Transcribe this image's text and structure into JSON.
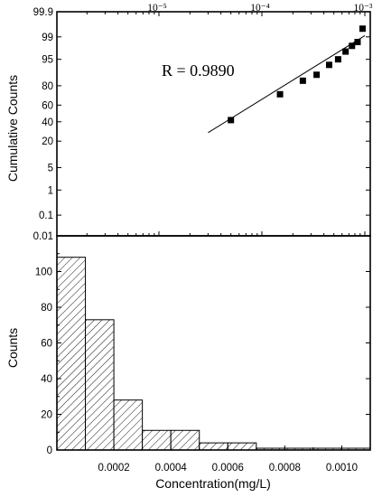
{
  "chart_data": [
    {
      "type": "scatter",
      "name": "probability-plot",
      "x_scale": "log",
      "y_scale": "probability",
      "xlim": [
        1e-06,
        0.001
      ],
      "x_ticks": [
        1e-05,
        0.0001,
        0.001
      ],
      "x_tick_labels": [
        "10⁻⁵",
        "10⁻⁴",
        "10⁻³"
      ],
      "y_ticks": [
        0.01,
        0.1,
        1,
        5,
        20,
        40,
        60,
        80,
        95,
        99,
        99.9
      ],
      "y_tick_labels": [
        "0.01",
        "0.1",
        "1",
        "5",
        "20",
        "40",
        "60",
        "80",
        "95",
        "99",
        "99.9"
      ],
      "ylabel": "Cumulative Counts",
      "annotation": "R = 0.9890",
      "points": [
        {
          "x": 5e-05,
          "y": 42
        },
        {
          "x": 0.00015,
          "y": 72
        },
        {
          "x": 0.00025,
          "y": 84
        },
        {
          "x": 0.00034,
          "y": 88
        },
        {
          "x": 0.00045,
          "y": 93
        },
        {
          "x": 0.00055,
          "y": 95
        },
        {
          "x": 0.00065,
          "y": 97
        },
        {
          "x": 0.00075,
          "y": 98
        },
        {
          "x": 0.00085,
          "y": 98.5
        },
        {
          "x": 0.00095,
          "y": 99.5
        }
      ],
      "fit_line": [
        {
          "x": 3e-05,
          "y": 28
        },
        {
          "x": 0.001,
          "y": 99.1
        }
      ]
    },
    {
      "type": "bar",
      "name": "histogram",
      "xlabel": "Concentration(mg/L)",
      "ylabel": "Counts",
      "xlim": [
        0,
        0.0011
      ],
      "ylim": [
        0,
        120
      ],
      "x_ticks": [
        0.0002,
        0.0004,
        0.0006,
        0.0008,
        0.001
      ],
      "x_tick_labels": [
        "0.0002",
        "0.0004",
        "0.0006",
        "0.0008",
        "0.0010"
      ],
      "y_ticks": [
        0,
        20,
        40,
        60,
        80,
        100
      ],
      "y_tick_labels": [
        "0",
        "20",
        "40",
        "60",
        "80",
        "100"
      ],
      "bins": [
        {
          "start": 0.0,
          "end": 0.0001,
          "count": 108
        },
        {
          "start": 0.0001,
          "end": 0.0002,
          "count": 73
        },
        {
          "start": 0.0002,
          "end": 0.0003,
          "count": 28
        },
        {
          "start": 0.0003,
          "end": 0.0004,
          "count": 11
        },
        {
          "start": 0.0004,
          "end": 0.0005,
          "count": 11
        },
        {
          "start": 0.0005,
          "end": 0.0006,
          "count": 4
        },
        {
          "start": 0.0006,
          "end": 0.0007,
          "count": 4
        },
        {
          "start": 0.0007,
          "end": 0.0008,
          "count": 1
        },
        {
          "start": 0.0008,
          "end": 0.0009,
          "count": 1
        },
        {
          "start": 0.0009,
          "end": 0.001,
          "count": 1
        },
        {
          "start": 0.001,
          "end": 0.0011,
          "count": 1
        }
      ]
    }
  ]
}
